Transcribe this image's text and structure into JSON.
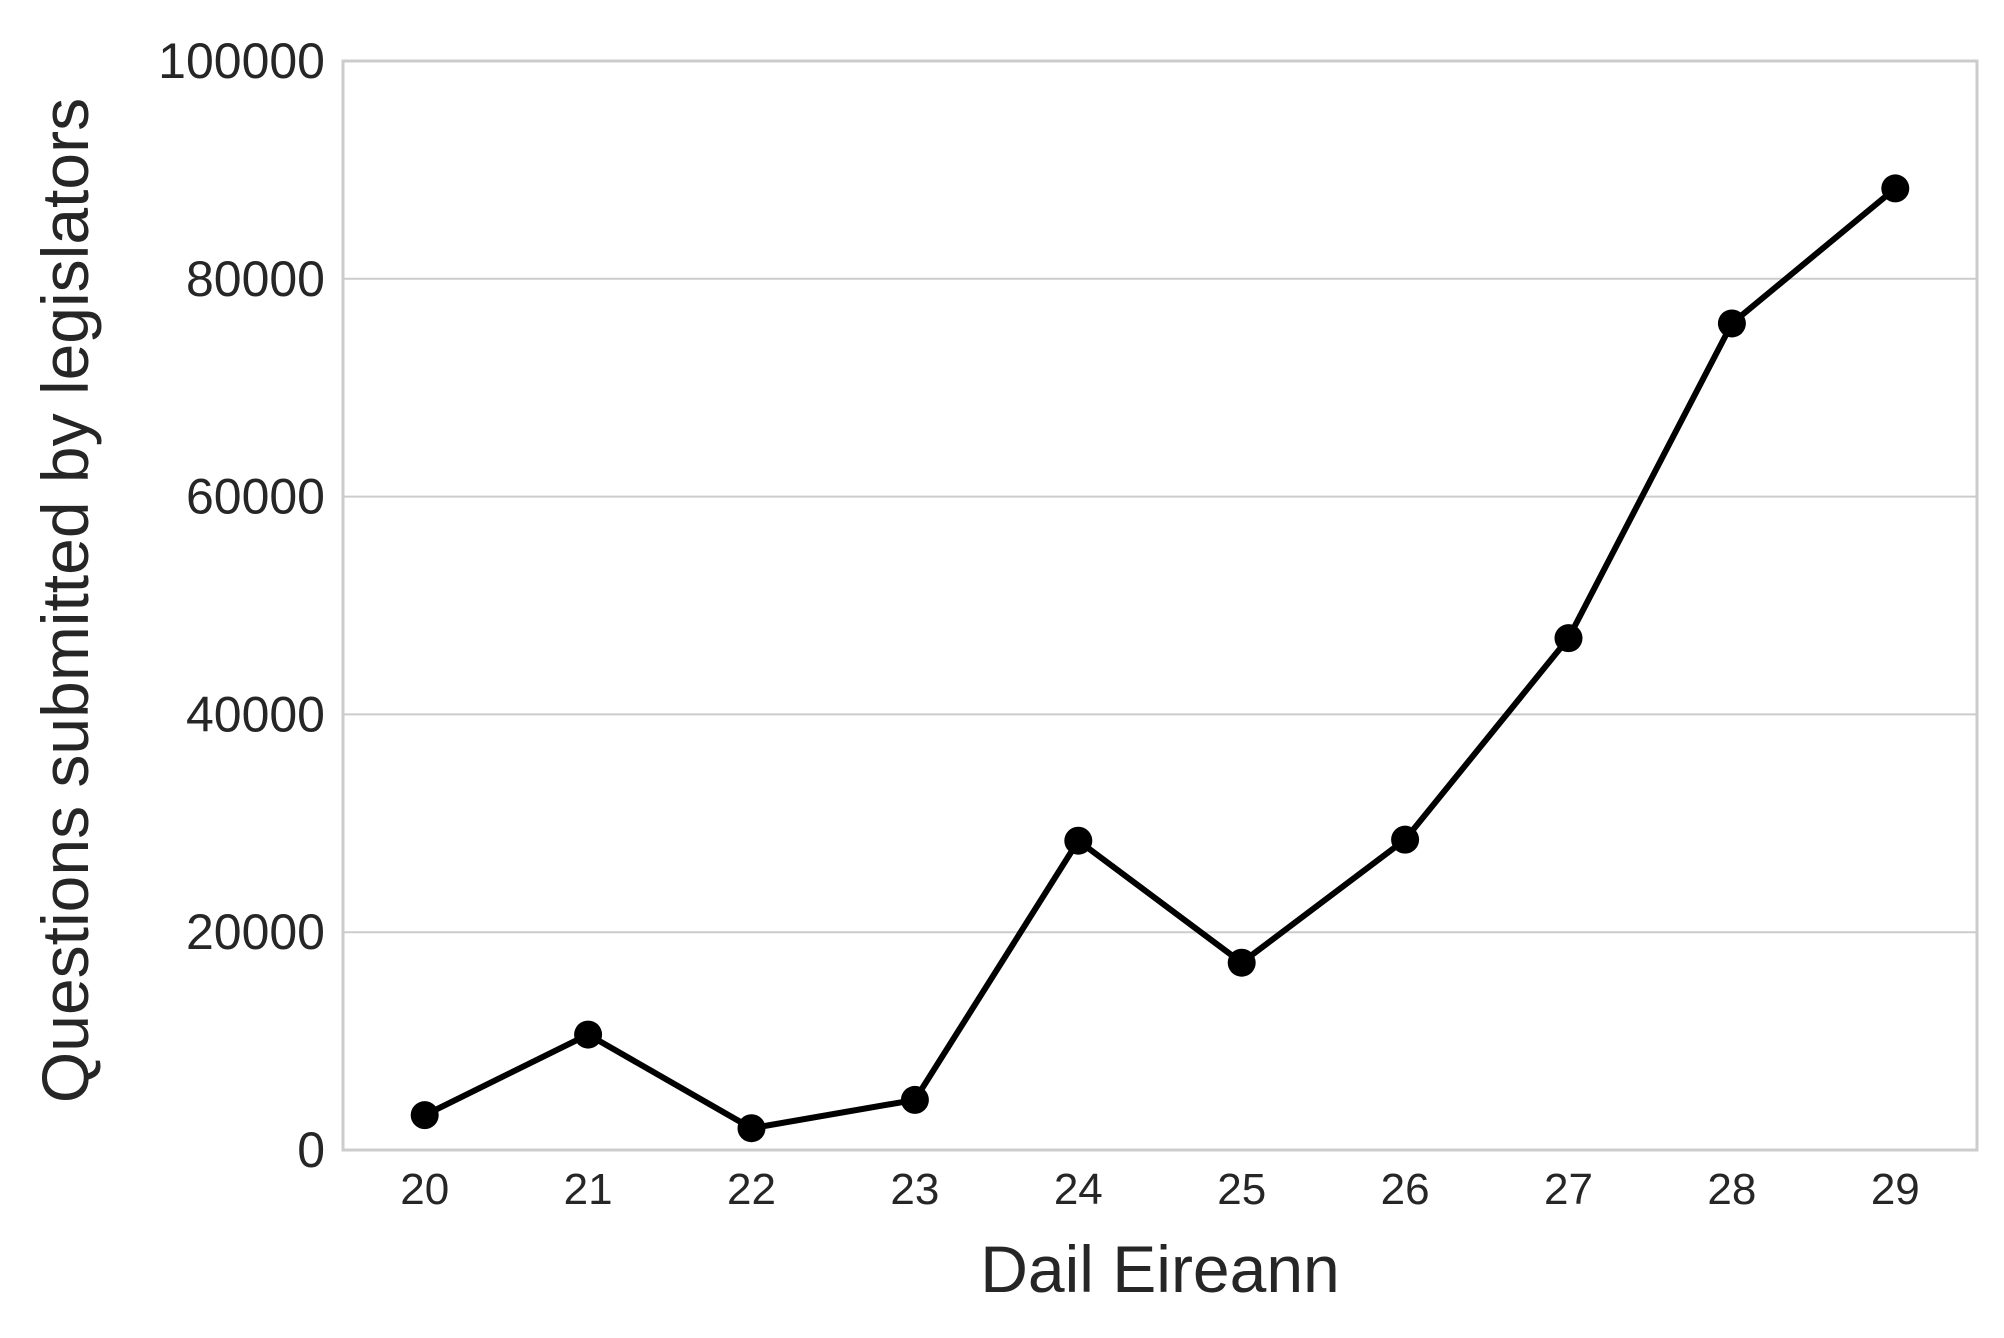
{
  "chart_data": {
    "type": "line",
    "title": "",
    "xlabel": "Dail Eireann",
    "ylabel": "Questions submitted by legislators",
    "categories": [
      "20",
      "21",
      "22",
      "23",
      "24",
      "25",
      "26",
      "27",
      "28",
      "29"
    ],
    "series": [
      {
        "values": [
          3200,
          10600,
          2000,
          4600,
          28400,
          17200,
          28500,
          47000,
          75900,
          88300
        ],
        "color": "#000000"
      }
    ],
    "ylim": [
      0,
      100000
    ],
    "yticks": [
      "0",
      "20000",
      "40000",
      "60000",
      "80000",
      "100000"
    ],
    "grid": "horizontal",
    "legend": "none",
    "colors": {
      "line": "#000000",
      "grid": "#cccccc",
      "frame": "#cccccc",
      "text": "#262626"
    }
  }
}
